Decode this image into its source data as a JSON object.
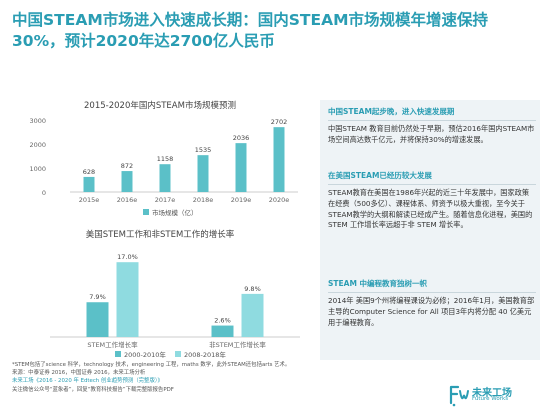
{
  "title": {
    "line1": "中国STEAM市场进入快速成长期：国内STEAM市场规模年增速保持",
    "line2": "30%，预计2020年达2700亿人民币"
  },
  "chart_data": [
    {
      "type": "bar",
      "title": "2015-2020年国内STEAM市场规模预测",
      "categories": [
        "2015e",
        "2016e",
        "2017e",
        "2018e",
        "2019e",
        "2020e"
      ],
      "series": [
        {
          "name": "市场规模（亿）",
          "values": [
            628,
            872,
            1158,
            1535,
            2036,
            2702
          ],
          "color": "#5bc0c8"
        }
      ],
      "ylim": [
        0,
        3000
      ],
      "yticks": [
        0,
        1000,
        2000,
        3000
      ],
      "xlabel": "",
      "ylabel": "",
      "grid": false,
      "legend": "bottom"
    },
    {
      "type": "bar",
      "title": "美国STEM工作和非STEM工作的增长率",
      "categories": [
        "STEM工作增长率",
        "非STEM工作增长率"
      ],
      "series": [
        {
          "name": "2000-2010年",
          "values": [
            7.9,
            2.6
          ],
          "labels": [
            "7.9%",
            "2.6%"
          ],
          "color": "#5bc0c8"
        },
        {
          "name": "2008-2018年",
          "values": [
            17.0,
            9.8
          ],
          "labels": [
            "17.0%",
            "9.8%"
          ],
          "color": "#8fdbe0"
        }
      ],
      "ylim": [
        0,
        20
      ],
      "xlabel": "",
      "ylabel": "",
      "grid": false,
      "legend": "bottom"
    }
  ],
  "sidebar": {
    "sections": [
      {
        "heading": "中国STEAM起步晚，进入快速发展期",
        "body": "中国STEAM 教育目前仍然处于早期，预估2016年国内STEAM市场空间高达数千亿元，并将保持30%的增速发展。"
      },
      {
        "heading": "在美国STEAM已经历较大发展",
        "body": "STEAM教育在美国在1986年兴起的近三十年发展中，国家政策在经费（500多亿）、课程体系、师资予以极大重视，至今关于STEAM教学的大纲和解读已经成产生。随着信息化进程，美国的STEM 工作增长率远超于非 STEM 增长率。"
      },
      {
        "heading": "STEAM 中编程教育独树一帜",
        "body": "2014年 美国9个州将编程课设为必修；2016年1月，美国教育部主导的Computer Science for All 项目3年内将分配 40 亿美元用于编程教育。"
      }
    ]
  },
  "footer": {
    "note": "*STEM包括了science 科学，technology 技术，engineering 工程，maths 数学，此外STEAM还包括arts 艺术。",
    "source": "来源：中泰证券 2016，中国证券 2016，未来工场分析",
    "report": "未来工场《2016 - 2020 年 Edtech 创业趋势预测（完整版）》",
    "follow": "关注微信公众号“蓝象者”，回复“教育科技报告”下载完整版报告PDF"
  },
  "logo": {
    "main": "未来工场",
    "sub": "Future Works"
  },
  "colors": {
    "accent": "#2a9db3",
    "bar_dark": "#5bc0c8",
    "bar_light": "#8fdbe0",
    "panel": "#eef3f6"
  }
}
